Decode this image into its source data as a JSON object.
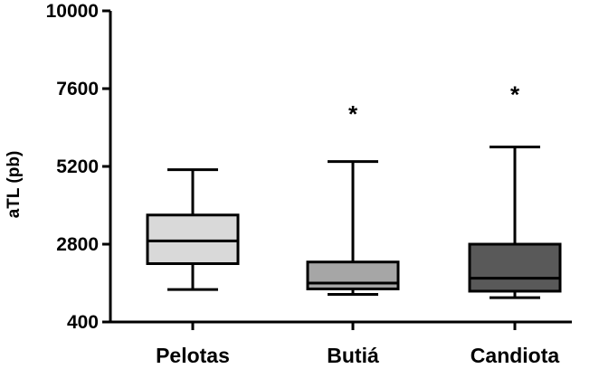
{
  "chart_data": {
    "type": "boxplot",
    "title": "",
    "ylabel": "aTL (pb)",
    "xlabel": "",
    "ylim": [
      400,
      10000
    ],
    "yticks": [
      400,
      2800,
      5200,
      7600,
      10000
    ],
    "ytick_labels": [
      "400",
      "2800",
      "5200",
      "7600",
      "10000"
    ],
    "categories": [
      "Pelotas",
      "Butiá",
      "Candiota"
    ],
    "boxes": [
      {
        "category": "Pelotas",
        "whisker_low": 1400,
        "q1": 2200,
        "median": 2900,
        "q3": 3700,
        "whisker_high": 5100,
        "outliers": [],
        "color": "#d9d9d9"
      },
      {
        "category": "Butiá",
        "whisker_low": 1250,
        "q1": 1420,
        "median": 1600,
        "q3": 2250,
        "whisker_high": 5350,
        "outliers": [
          6900
        ],
        "color": "#a6a6a6"
      },
      {
        "category": "Candiota",
        "whisker_low": 1150,
        "q1": 1350,
        "median": 1750,
        "q3": 2800,
        "whisker_high": 5800,
        "outliers": [
          7500
        ],
        "color": "#595959"
      }
    ],
    "outlier_marker": "*",
    "grid": false,
    "legend": "none"
  }
}
